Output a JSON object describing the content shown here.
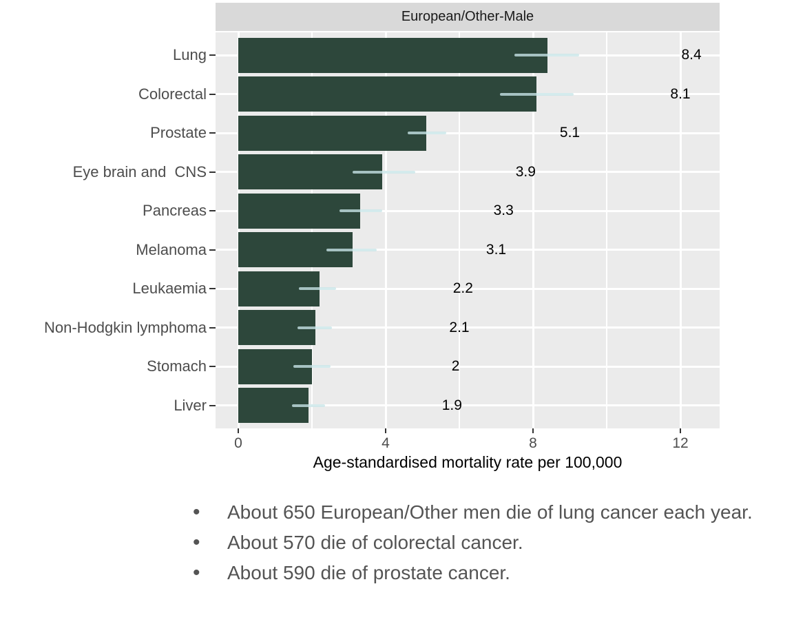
{
  "chart_data": {
    "type": "bar",
    "orientation": "horizontal",
    "facet_title": "European/Other-Male",
    "xlabel": "Age-standardised mortality rate per 100,000",
    "x_ticks": [
      0,
      4,
      8,
      12
    ],
    "x_tick_labels": [
      "0",
      "4",
      "8",
      "12"
    ],
    "x_minor_ticks": [
      2,
      6,
      10
    ],
    "xlim": [
      -0.62,
      13.07
    ],
    "grid": true,
    "categories": [
      "Lung",
      "Colorectal",
      "Prostate",
      "Eye brain and  CNS",
      "Pancreas",
      "Melanoma",
      "Leukaemia",
      "Non-Hodgkin lymphoma",
      "Stomach",
      "Liver"
    ],
    "values": [
      8.4,
      8.1,
      5.1,
      3.9,
      3.3,
      3.1,
      2.2,
      2.1,
      2,
      1.9
    ],
    "value_labels": [
      "8.4",
      "8.1",
      "5.1",
      "3.9",
      "3.3",
      "3.1",
      "2.2",
      "2.1",
      "2",
      "1.9"
    ],
    "error_low": [
      7.5,
      7.1,
      4.6,
      3.1,
      2.75,
      2.4,
      1.65,
      1.6,
      1.5,
      1.45
    ],
    "error_high": [
      9.25,
      9.1,
      5.65,
      4.8,
      3.9,
      3.75,
      2.65,
      2.55,
      2.5,
      2.35
    ],
    "value_label_offset_units": 3.9,
    "colors": {
      "bar": "#2d473b",
      "error_bar": "#c8e5e8",
      "panel_bg": "#ebebeb",
      "strip_bg": "#d9d9d9",
      "grid_major": "#ffffff",
      "grid_minor": "#ffffff",
      "tick": "#333333",
      "axis_text": "#4d4d4d",
      "value_text": "#000000",
      "note_text": "#545454"
    }
  },
  "notes": {
    "items": [
      "About 650 European/Other men die of lung cancer each year.",
      "About 570 die of colorectal cancer.",
      "About 590 die of prostate cancer."
    ]
  }
}
